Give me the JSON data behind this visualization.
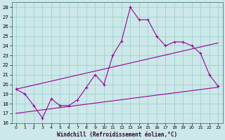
{
  "xlabel": "Windchill (Refroidissement éolien,°C)",
  "xlim": [
    -0.5,
    23.5
  ],
  "ylim": [
    16,
    28.5
  ],
  "yticks": [
    16,
    17,
    18,
    19,
    20,
    21,
    22,
    23,
    24,
    25,
    26,
    27,
    28
  ],
  "xticks": [
    0,
    1,
    2,
    3,
    4,
    5,
    6,
    7,
    8,
    9,
    10,
    11,
    12,
    13,
    14,
    15,
    16,
    17,
    18,
    19,
    20,
    21,
    22,
    23
  ],
  "bg_color": "#cce8e8",
  "grid_color": "#99cccc",
  "line_color": "#990099",
  "line1_x": [
    0,
    1,
    2,
    3,
    4,
    5,
    6,
    7,
    8,
    9,
    10,
    11,
    12,
    13,
    14,
    15,
    16,
    17,
    18,
    19,
    20,
    21,
    22,
    23
  ],
  "line1_y": [
    19.5,
    19.0,
    17.8,
    16.5,
    18.5,
    17.8,
    17.8,
    18.4,
    19.7,
    21.0,
    20.0,
    23.0,
    24.5,
    28.0,
    26.7,
    26.7,
    25.0,
    24.0,
    24.4,
    24.4,
    24.0,
    23.2,
    21.0,
    19.8
  ],
  "line2_x": [
    0,
    23
  ],
  "line2_y": [
    19.5,
    24.3
  ],
  "line3_x": [
    0,
    23
  ],
  "line3_y": [
    17.0,
    19.7
  ]
}
